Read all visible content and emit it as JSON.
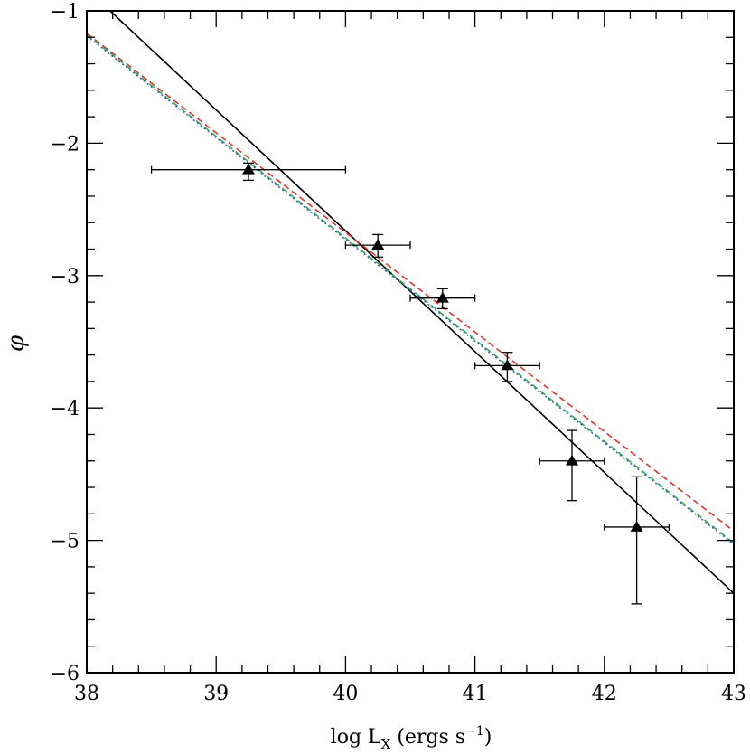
{
  "chart_data": {
    "type": "scatter",
    "xlabel": "log L",
    "xlabel_subscript": "X",
    "xlabel_units": "(ergs s",
    "xlabel_units_superscript": "−1",
    "xlabel_units_close": ")",
    "ylabel": "φ",
    "xlim": [
      38,
      43
    ],
    "ylim": [
      -6,
      -1
    ],
    "xticks": [
      38,
      39,
      40,
      41,
      42,
      43
    ],
    "yticks": [
      -1,
      -2,
      -3,
      -4,
      -5,
      -6
    ],
    "xtick_labels": [
      "38",
      "39",
      "40",
      "41",
      "42",
      "43"
    ],
    "ytick_labels": [
      "−1",
      "−2",
      "−3",
      "−4",
      "−5",
      "−6"
    ],
    "grid": false,
    "points": [
      {
        "x": 39.25,
        "y": -2.2,
        "xerr": [
          0.75,
          0.75
        ],
        "yerr": [
          0.08,
          0.05
        ]
      },
      {
        "x": 40.25,
        "y": -2.77,
        "xerr": [
          0.25,
          0.25
        ],
        "yerr": [
          0.09,
          0.08
        ]
      },
      {
        "x": 40.75,
        "y": -3.17,
        "xerr": [
          0.25,
          0.25
        ],
        "yerr": [
          0.08,
          0.07
        ]
      },
      {
        "x": 41.25,
        "y": -3.68,
        "xerr": [
          0.25,
          0.25
        ],
        "yerr": [
          0.12,
          0.1
        ]
      },
      {
        "x": 41.75,
        "y": -4.4,
        "xerr": [
          0.25,
          0.25
        ],
        "yerr": [
          0.3,
          0.23
        ]
      },
      {
        "x": 42.25,
        "y": -4.9,
        "xerr": [
          0.25,
          0.25
        ],
        "yerr": [
          0.58,
          0.38
        ]
      }
    ],
    "series": [
      {
        "color": "#000000",
        "dash": "solid",
        "x": [
          38.18,
          43.0
        ],
        "y": [
          -1.0,
          -5.4
        ]
      },
      {
        "color": "#e8302a",
        "dash": "dashed",
        "x": [
          38.0,
          43.0
        ],
        "y": [
          -1.17,
          -4.93
        ]
      },
      {
        "color": "#2fb24a",
        "dash": "dashed",
        "x": [
          38.0,
          43.0
        ],
        "y": [
          -1.18,
          -5.02
        ]
      },
      {
        "color": "#3a5fcd",
        "dash": "dotted",
        "x": [
          38.0,
          43.0
        ],
        "y": [
          -1.19,
          -5.03
        ]
      }
    ]
  }
}
